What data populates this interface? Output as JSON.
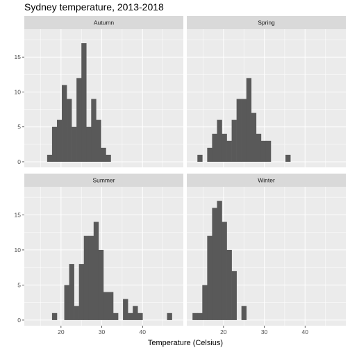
{
  "chart_data": {
    "type": "bar",
    "title": "Sydney temperature, 2013-2018",
    "xlabel": "Temperature (Celsius)",
    "ylabel": "",
    "xlim": [
      11,
      50
    ],
    "ylim": [
      -0.8,
      19
    ],
    "x_ticks": [
      20,
      30,
      40
    ],
    "y_ticks": [
      0,
      5,
      10,
      15
    ],
    "bin_width": 1.2,
    "colors": {
      "bar": "#595959",
      "panel_bg": "#ebebeb",
      "strip_bg": "#d9d9d9",
      "grid": "#ffffff"
    },
    "grid": true,
    "panels": [
      {
        "name": "Autumn",
        "bins": [
          {
            "x": 17.2,
            "count": 1
          },
          {
            "x": 18.4,
            "count": 5
          },
          {
            "x": 19.6,
            "count": 6
          },
          {
            "x": 20.8,
            "count": 11
          },
          {
            "x": 22.0,
            "count": 9
          },
          {
            "x": 23.2,
            "count": 5
          },
          {
            "x": 24.4,
            "count": 12
          },
          {
            "x": 25.6,
            "count": 17
          },
          {
            "x": 26.8,
            "count": 5
          },
          {
            "x": 28.0,
            "count": 9
          },
          {
            "x": 29.2,
            "count": 6
          },
          {
            "x": 30.4,
            "count": 2
          },
          {
            "x": 31.6,
            "count": 1
          }
        ]
      },
      {
        "name": "Spring",
        "bins": [
          {
            "x": 14.2,
            "count": 1
          },
          {
            "x": 16.6,
            "count": 2
          },
          {
            "x": 17.8,
            "count": 4
          },
          {
            "x": 19.0,
            "count": 6
          },
          {
            "x": 20.2,
            "count": 4
          },
          {
            "x": 21.4,
            "count": 3
          },
          {
            "x": 22.6,
            "count": 6
          },
          {
            "x": 23.8,
            "count": 9
          },
          {
            "x": 25.0,
            "count": 9
          },
          {
            "x": 26.2,
            "count": 12
          },
          {
            "x": 27.4,
            "count": 7
          },
          {
            "x": 28.6,
            "count": 4
          },
          {
            "x": 29.8,
            "count": 3
          },
          {
            "x": 31.0,
            "count": 3
          },
          {
            "x": 35.8,
            "count": 1
          }
        ]
      },
      {
        "name": "Summer",
        "bins": [
          {
            "x": 18.4,
            "count": 1
          },
          {
            "x": 21.4,
            "count": 5
          },
          {
            "x": 22.6,
            "count": 8
          },
          {
            "x": 23.8,
            "count": 2
          },
          {
            "x": 25.0,
            "count": 8
          },
          {
            "x": 26.2,
            "count": 12
          },
          {
            "x": 27.4,
            "count": 12
          },
          {
            "x": 28.6,
            "count": 14
          },
          {
            "x": 29.8,
            "count": 10
          },
          {
            "x": 31.0,
            "count": 4
          },
          {
            "x": 32.2,
            "count": 4
          },
          {
            "x": 33.4,
            "count": 1
          },
          {
            "x": 35.8,
            "count": 3
          },
          {
            "x": 37.0,
            "count": 1
          },
          {
            "x": 38.2,
            "count": 2
          },
          {
            "x": 39.4,
            "count": 1
          },
          {
            "x": 46.6,
            "count": 1
          }
        ]
      },
      {
        "name": "Winter",
        "bins": [
          {
            "x": 13.0,
            "count": 1
          },
          {
            "x": 14.2,
            "count": 1
          },
          {
            "x": 15.4,
            "count": 5
          },
          {
            "x": 16.6,
            "count": 12
          },
          {
            "x": 17.8,
            "count": 16
          },
          {
            "x": 19.0,
            "count": 17
          },
          {
            "x": 20.2,
            "count": 14
          },
          {
            "x": 21.4,
            "count": 10
          },
          {
            "x": 22.6,
            "count": 7
          },
          {
            "x": 25.0,
            "count": 2
          }
        ]
      }
    ]
  }
}
